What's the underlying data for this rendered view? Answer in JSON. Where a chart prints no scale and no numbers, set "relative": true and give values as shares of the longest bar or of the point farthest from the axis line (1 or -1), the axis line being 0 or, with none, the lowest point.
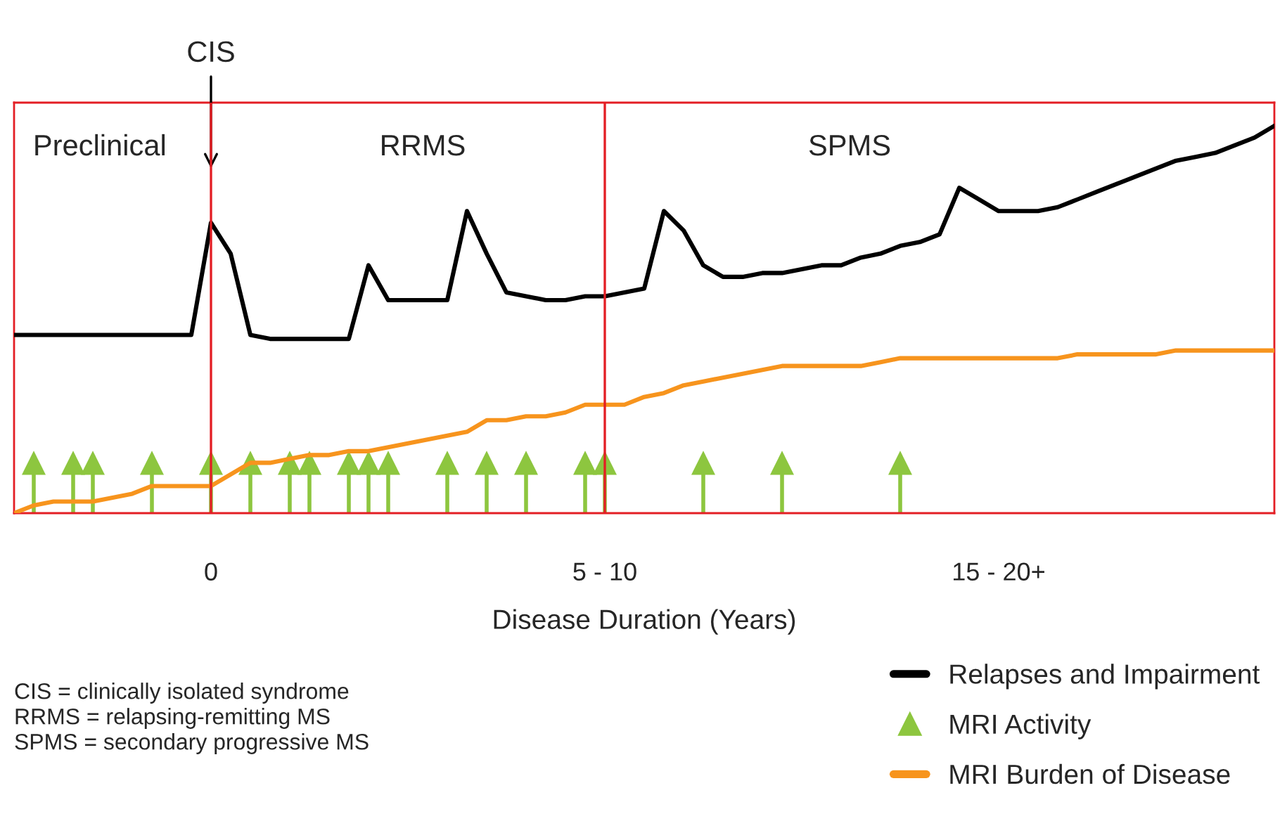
{
  "chart_data": {
    "type": "line",
    "relative": true,
    "xlabel": "Disease Duration (Years)",
    "categories": [
      null,
      null,
      null,
      null,
      null,
      null,
      null,
      null,
      null,
      null,
      "0",
      null,
      null,
      null,
      null,
      null,
      null,
      null,
      null,
      null,
      null,
      null,
      null,
      null,
      null,
      null,
      null,
      null,
      null,
      null,
      "5 - 10",
      null,
      null,
      null,
      null,
      null,
      null,
      null,
      null,
      null,
      null,
      null,
      null,
      null,
      null,
      null,
      null,
      null,
      null,
      null,
      "15 - 20+",
      null,
      null,
      null,
      null,
      null,
      null,
      null,
      null,
      null,
      null,
      null,
      null,
      null,
      null
    ],
    "series": [
      {
        "name": "Relapses and Impairment",
        "color": "#000000",
        "values": [
          0.46,
          0.46,
          0.46,
          0.46,
          0.46,
          0.46,
          0.46,
          0.46,
          0.46,
          0.46,
          0.75,
          0.67,
          0.46,
          0.45,
          0.45,
          0.45,
          0.45,
          0.45,
          0.64,
          0.55,
          0.55,
          0.55,
          0.55,
          0.78,
          0.67,
          0.57,
          0.56,
          0.55,
          0.55,
          0.56,
          0.56,
          0.57,
          0.58,
          0.78,
          0.73,
          0.64,
          0.61,
          0.61,
          0.62,
          0.62,
          0.63,
          0.64,
          0.64,
          0.66,
          0.67,
          0.69,
          0.7,
          0.72,
          0.84,
          0.81,
          0.78,
          0.78,
          0.78,
          0.79,
          0.81,
          0.83,
          0.85,
          0.87,
          0.89,
          0.91,
          0.92,
          0.93,
          0.95,
          0.97,
          1.0
        ]
      },
      {
        "name": "MRI Activity",
        "type": "lollipop",
        "color": "#8dc63f",
        "marker": "triangle",
        "values": [
          null,
          0.13,
          null,
          0.13,
          0.13,
          null,
          null,
          0.13,
          null,
          null,
          0.13,
          null,
          0.13,
          null,
          0.13,
          0.13,
          null,
          0.13,
          0.13,
          0.13,
          null,
          null,
          0.13,
          null,
          0.13,
          null,
          0.13,
          null,
          null,
          0.13,
          0.13,
          null,
          null,
          null,
          null,
          0.13,
          null,
          null,
          null,
          0.13,
          null,
          null,
          null,
          null,
          null,
          0.13,
          null,
          null,
          null,
          null,
          null,
          null,
          null,
          null,
          null,
          null,
          null,
          null,
          null,
          null,
          null,
          null,
          null,
          null,
          null
        ]
      },
      {
        "name": "MRI Burden of Disease",
        "color": "#f7941d",
        "values": [
          0.0,
          0.02,
          0.03,
          0.03,
          0.03,
          0.04,
          0.05,
          0.07,
          0.07,
          0.07,
          0.07,
          0.1,
          0.13,
          0.13,
          0.14,
          0.15,
          0.15,
          0.16,
          0.16,
          0.17,
          0.18,
          0.19,
          0.2,
          0.21,
          0.24,
          0.24,
          0.25,
          0.25,
          0.26,
          0.28,
          0.28,
          0.28,
          0.3,
          0.31,
          0.33,
          0.34,
          0.35,
          0.36,
          0.37,
          0.38,
          0.38,
          0.38,
          0.38,
          0.38,
          0.39,
          0.4,
          0.4,
          0.4,
          0.4,
          0.4,
          0.4,
          0.4,
          0.4,
          0.4,
          0.41,
          0.41,
          0.41,
          0.41,
          0.41,
          0.42,
          0.42,
          0.42,
          0.42,
          0.42,
          0.42
        ]
      }
    ],
    "ref_lines": [
      {
        "axis": "x",
        "value": "0",
        "color": "#e31e24"
      },
      {
        "axis": "x",
        "value": "5 - 10",
        "color": "#e31e24"
      }
    ],
    "annotations": [
      "Preclinical",
      "RRMS",
      "SPMS",
      "CIS = clinically isolated syndrome",
      "RRMS = relapsing-remitting MS",
      "SPMS = secondary progressive MS",
      {
        "text": "CIS",
        "x": "0",
        "y": 0.88
      }
    ],
    "legend": "bottom right"
  }
}
